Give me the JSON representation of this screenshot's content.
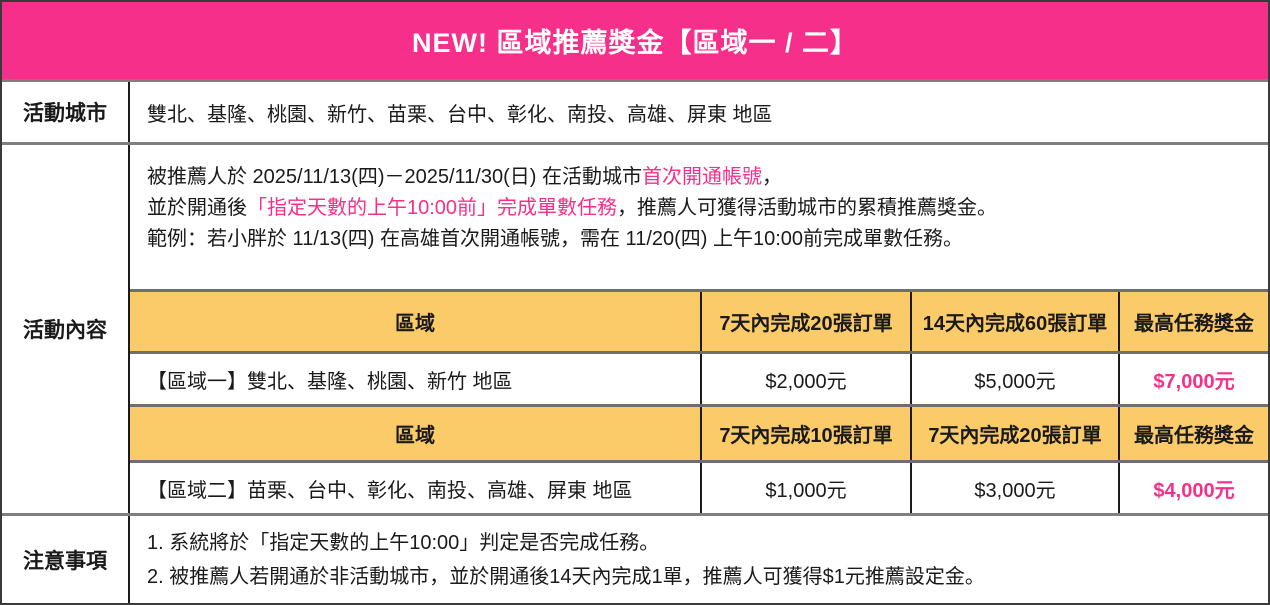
{
  "banner": {
    "title": "NEW! 區域推薦獎金【區域一 / 二】"
  },
  "city_row": {
    "label": "活動城市",
    "content": "雙北、基隆、桃園、新竹、苗栗、台中、彰化、南投、高雄、屏東 地區"
  },
  "activity_row": {
    "label": "活動內容",
    "line1_pre": "被推薦人於 2025/11/13(四)－2025/11/30(日) 在活動城市",
    "line1_pink": "首次開通帳號",
    "line1_post": "，",
    "line2_pre": "並於開通後",
    "line2_pink": "「指定天數的上午10:00前」完成單數任務",
    "line2_post": "，推薦人可獲得活動城市的累積推薦獎金。",
    "line3": "範例：若小胖於 11/13(四) 在高雄首次開通帳號，需在 11/20(四) 上午10:00前完成單數任務。"
  },
  "inner_table": {
    "tables": [
      {
        "headers": [
          "區域",
          "7天內完成20張訂單",
          "14天內完成60張訂單",
          "最高任務獎金"
        ],
        "row": [
          "【區域一】雙北、基隆、桃園、新竹 地區",
          "$2,000元",
          "$5,000元",
          "$7,000元"
        ]
      },
      {
        "headers": [
          "區域",
          "7天內完成10張訂單",
          "7天內完成20張訂單",
          "最高任務獎金"
        ],
        "row": [
          "【區域二】苗栗、台中、彰化、南投、高雄、屏東 地區",
          "$1,000元",
          "$3,000元",
          "$4,000元"
        ]
      }
    ]
  },
  "notes_row": {
    "label": "注意事項",
    "items": [
      "1. 系統將於「指定天數的上午10:00」判定是否完成任務。",
      "2. 被推薦人若開通於非活動城市，並於開通後14天內完成1單，推薦人可獲得$1元推薦設定金。"
    ]
  },
  "colors": {
    "brand_pink": "#f6308a",
    "header_yellow": "#fbcb69",
    "highlight_pink": "#f6308a"
  }
}
